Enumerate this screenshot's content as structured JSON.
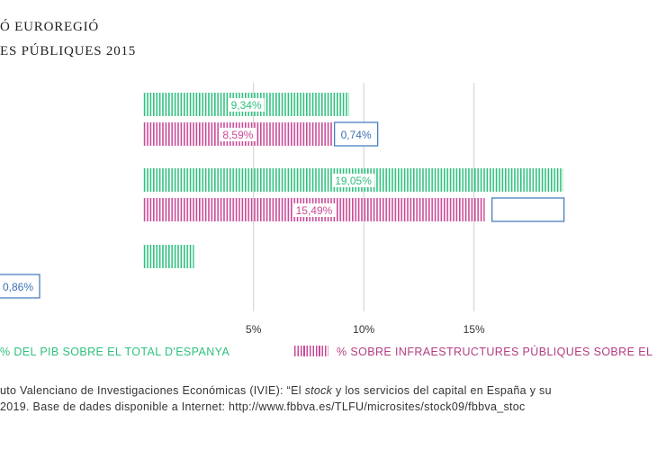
{
  "title": {
    "line1": "Ó EUROREGIÓ",
    "line2": "ES PÚBLIQUES 2015"
  },
  "chart_data": {
    "type": "bar",
    "orientation": "horizontal",
    "xlim": [
      -6.5,
      23.3
    ],
    "xticks": [
      5,
      10,
      15
    ],
    "xtick_labels": [
      "5%",
      "10%",
      "15%"
    ],
    "categories": [
      "",
      "",
      ""
    ],
    "series": [
      {
        "name": "% DEL PIB SOBRE EL TOTAL D'ESPANYA",
        "color": "#2fc07e",
        "values": [
          9.34,
          19.05,
          2.3
        ],
        "labels": [
          "9,34%",
          "19,05%",
          ""
        ]
      },
      {
        "name": "% SOBRE INFRAESTRUCTURES PÚBLIQUES SOBRE EL",
        "color": "#c94a97",
        "values": [
          8.59,
          15.49,
          null
        ],
        "labels": [
          "8,59%",
          "15,49%",
          ""
        ]
      }
    ],
    "annotations": [
      {
        "category_index": 0,
        "text": "0,74%"
      },
      {
        "category_index": 1,
        "text": ""
      },
      {
        "category_index": 2,
        "text": "0,86%"
      }
    ]
  },
  "legend": {
    "item1": "% DEL PIB SOBRE EL TOTAL D'ESPANYA",
    "item2": "% SOBRE INFRAESTRUCTURES PÚBLIQUES SOBRE EL"
  },
  "source": {
    "line1_pre": "uto Valenciano de Investigaciones Económicas (IVIE): “El ",
    "line1_em": "stock",
    "line1_post": " y los servicios del capital en España y su",
    "line2": " 2019. Base de dades disponible a Internet: http://www.fbbva.es/TLFU/microsites/stock09/fbbva_stoc"
  },
  "colors": {
    "green": "#2fc07e",
    "pink": "#c94a97",
    "blue_box": "#4a7fc0",
    "grid": "#cfcfcf"
  }
}
